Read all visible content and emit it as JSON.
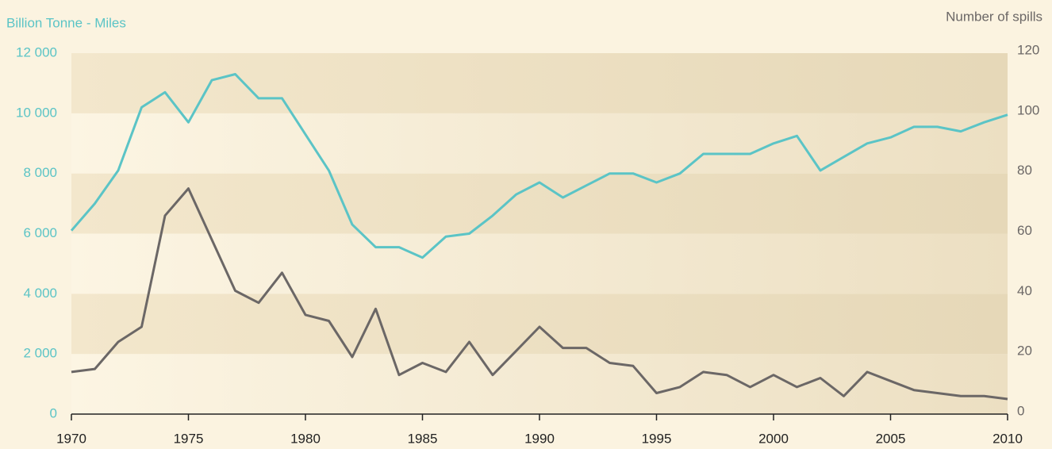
{
  "chart_data": {
    "type": "line",
    "y_label": "Billion Tonne - Miles",
    "y2_label": "Number of spills",
    "x": [
      1970,
      1971,
      1972,
      1973,
      1974,
      1975,
      1976,
      1977,
      1978,
      1979,
      1980,
      1981,
      1982,
      1983,
      1984,
      1985,
      1986,
      1987,
      1988,
      1989,
      1990,
      1991,
      1992,
      1993,
      1994,
      1995,
      1996,
      1997,
      1998,
      1999,
      2000,
      2001,
      2002,
      2003,
      2004,
      2005,
      2006,
      2007,
      2008,
      2009,
      2010
    ],
    "xlim": [
      1970,
      2010
    ],
    "xticks": [
      1970,
      1975,
      1980,
      1985,
      1990,
      1995,
      2000,
      2005,
      2010
    ],
    "ylim": [
      0,
      12000
    ],
    "yticks": [
      0,
      {
        "value": 2000,
        "label": "2 000"
      },
      {
        "value": 4000,
        "label": "4 000"
      },
      {
        "value": 6000,
        "label": "6 000"
      },
      {
        "value": 8000,
        "label": "8 000"
      },
      {
        "value": 10000,
        "label": "10 000"
      },
      {
        "value": 12000,
        "label": "12 000"
      }
    ],
    "y2lim": [
      0,
      120
    ],
    "y2ticks": [
      0,
      20,
      40,
      60,
      80,
      100,
      120
    ],
    "series": [
      {
        "color": "#6b6766",
        "axis": "y2",
        "values": [
          14,
          15,
          24,
          29,
          66,
          75,
          58,
          41,
          37,
          47,
          33,
          31,
          19,
          35,
          13,
          17,
          14,
          24,
          13,
          21,
          29,
          22,
          22,
          17,
          16,
          7,
          9,
          14,
          13,
          9,
          13,
          9,
          12,
          6,
          14,
          11,
          8,
          7,
          6,
          6,
          5
        ]
      },
      {
        "color": "#5bc4c6",
        "values": [
          6100,
          7000,
          8100,
          10200,
          10700,
          9700,
          11100,
          11300,
          10500,
          10500,
          9300,
          8100,
          6300,
          5550,
          5550,
          5200,
          5900,
          6000,
          6600,
          7300,
          7700,
          7200,
          7600,
          8000,
          8000,
          7700,
          8000,
          8650,
          8650,
          8650,
          9000,
          9250,
          8100,
          8550,
          9000,
          9200,
          9550,
          9550,
          9400,
          9700,
          9950
        ]
      }
    ]
  }
}
